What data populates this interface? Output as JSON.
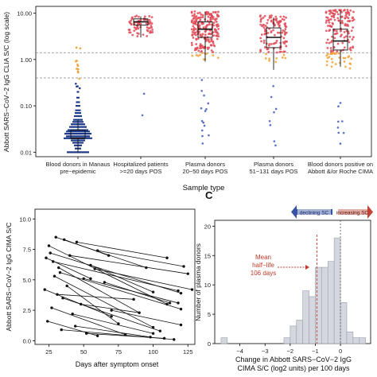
{
  "colors": {
    "manaus": "#1f3a8a",
    "red": "#e04a57",
    "orange": "#f0a33a",
    "blue_pt": "#5a6fc8",
    "hist_fill": "#d4d7de",
    "hist_edge": "#9aa0aa",
    "half_life": "#c0392b",
    "declining": "#2c4aa0",
    "increasing": "#c0392b"
  },
  "chart_data": [
    {
      "type": "box-dot",
      "ylabel": "Abbott SARS−CoV−2 IgG CLIA S/C (log scale)",
      "xlabel": "Sample type",
      "yscale": "log",
      "ylim": [
        0.008,
        14
      ],
      "yticks": [
        "0.01",
        "0.10",
        "1.00",
        "10.00"
      ],
      "reference_lines": [
        1.4,
        0.4
      ],
      "categories": [
        {
          "line1": "Blood donors in Manaus",
          "line2": "pre−epidemic"
        },
        {
          "line1": "Hospitalized patients",
          "line2": ">=20 days POS"
        },
        {
          "line1": "Plasma donors",
          "line2": "20−50 days POS"
        },
        {
          "line1": "Plasma donors",
          "line2": "51−131 days POS"
        },
        {
          "line1": "Blood donors positive on",
          "line2": "Abbott &/or Roche CIMA"
        }
      ],
      "boxes": [
        {
          "min": 0.01,
          "q1": 0.02,
          "median": 0.02,
          "q3": 0.03,
          "max": 0.05
        },
        {
          "min": 3.0,
          "q1": 5.5,
          "median": 6.5,
          "q3": 7.5,
          "max": 8.5
        },
        {
          "min": 0.9,
          "q1": 3.0,
          "median": 4.5,
          "q3": 6.5,
          "max": 10.5
        },
        {
          "min": 0.6,
          "q1": 1.8,
          "median": 3.0,
          "q3": 4.8,
          "max": 8.0
        },
        {
          "min": 0.7,
          "q1": 1.6,
          "median": 2.5,
          "q3": 4.5,
          "max": 11.5
        }
      ]
    },
    {
      "type": "line",
      "ylabel": "Abbott SARS−CoV−2 IgG CIMA S/C",
      "xlabel": "Days after symptom onset",
      "xlim": [
        15,
        130
      ],
      "ylim": [
        -0.3,
        10.8
      ],
      "xticks": [
        25,
        50,
        75,
        100,
        125
      ],
      "yticks": [
        "0.0",
        "2.5",
        "5.0",
        "7.5",
        "10.0"
      ],
      "series": [
        {
          "x": [
            25,
            110
          ],
          "y": [
            7.8,
            3.0
          ]
        },
        {
          "x": [
            28,
            118
          ],
          "y": [
            6.5,
            4.1
          ]
        },
        {
          "x": [
            30,
            95
          ],
          "y": [
            8.5,
            6.0
          ]
        },
        {
          "x": [
            33,
            120
          ],
          "y": [
            5.6,
            2.6
          ]
        },
        {
          "x": [
            22,
            70
          ],
          "y": [
            4.2,
            2.0
          ]
        },
        {
          "x": [
            35,
            105
          ],
          "y": [
            3.5,
            0.8
          ]
        },
        {
          "x": [
            40,
            125
          ],
          "y": [
            7.0,
            5.5
          ]
        },
        {
          "x": [
            45,
            110
          ],
          "y": [
            8.1,
            6.8
          ]
        },
        {
          "x": [
            50,
            118
          ],
          "y": [
            5.1,
            3.1
          ]
        },
        {
          "x": [
            27,
            80
          ],
          "y": [
            2.7,
            0.5
          ]
        },
        {
          "x": [
            55,
            100
          ],
          "y": [
            6.2,
            4.0
          ]
        },
        {
          "x": [
            24,
            60
          ],
          "y": [
            1.6,
            0.4
          ]
        },
        {
          "x": [
            60,
            122
          ],
          "y": [
            7.4,
            6.1
          ]
        },
        {
          "x": [
            32,
            90
          ],
          "y": [
            6.0,
            2.3
          ]
        },
        {
          "x": [
            38,
            75
          ],
          "y": [
            4.5,
            1.4
          ]
        },
        {
          "x": [
            42,
            100
          ],
          "y": [
            2.2,
            0.6
          ]
        },
        {
          "x": [
            26,
            120
          ],
          "y": [
            7.2,
            3.9
          ]
        },
        {
          "x": [
            65,
            112
          ],
          "y": [
            4.8,
            3.1
          ]
        },
        {
          "x": [
            48,
            90
          ],
          "y": [
            3.0,
            2.3
          ]
        },
        {
          "x": [
            36,
            68
          ],
          "y": [
            8.3,
            7.0
          ]
        },
        {
          "x": [
            29,
            100
          ],
          "y": [
            5.3,
            1.1
          ]
        },
        {
          "x": [
            70,
            120
          ],
          "y": [
            2.5,
            1.3
          ]
        },
        {
          "x": [
            23,
            55
          ],
          "y": [
            6.8,
            5.1
          ]
        },
        {
          "x": [
            52,
            108
          ],
          "y": [
            0.6,
            0.2
          ]
        },
        {
          "x": [
            31,
            86
          ],
          "y": [
            3.8,
            3.4
          ]
        },
        {
          "x": [
            44,
            98
          ],
          "y": [
            1.2,
            0.3
          ]
        },
        {
          "x": [
            58,
            128
          ],
          "y": [
            5.9,
            4.2
          ]
        },
        {
          "x": [
            34,
            115
          ],
          "y": [
            0.9,
            0.1
          ]
        }
      ]
    },
    {
      "type": "bar",
      "panel_label": "C",
      "ylabel": "Number of plasma donors",
      "xlabel_line1": "Change in Abbott SARS−CoV−2 IgG",
      "xlabel_line2": "CIMA S/C (log2 units) per 100 days",
      "xlim": [
        -5,
        1.2
      ],
      "ylim": [
        0,
        21
      ],
      "xticks": [
        -4,
        -3,
        -2,
        -1,
        0
      ],
      "yticks": [
        0,
        5,
        10,
        15,
        20
      ],
      "bin_width": 0.25,
      "bins": [
        {
          "x0": -4.75,
          "value": 1
        },
        {
          "x0": -2.25,
          "value": 1
        },
        {
          "x0": -2.0,
          "value": 3
        },
        {
          "x0": -1.75,
          "value": 4
        },
        {
          "x0": -1.5,
          "value": 9
        },
        {
          "x0": -1.25,
          "value": 8
        },
        {
          "x0": -1.0,
          "value": 13
        },
        {
          "x0": -0.75,
          "value": 13
        },
        {
          "x0": -0.5,
          "value": 14
        },
        {
          "x0": -0.25,
          "value": 18
        },
        {
          "x0": 0.0,
          "value": 7
        },
        {
          "x0": 0.25,
          "value": 2
        },
        {
          "x0": 0.5,
          "value": 1
        },
        {
          "x0": 0.75,
          "value": 1
        }
      ],
      "half_life_x": -0.94,
      "annotation": [
        "Mean",
        "half−life",
        "106 days"
      ],
      "arrow_left": "declining SC",
      "arrow_right": "increasing SC"
    }
  ]
}
